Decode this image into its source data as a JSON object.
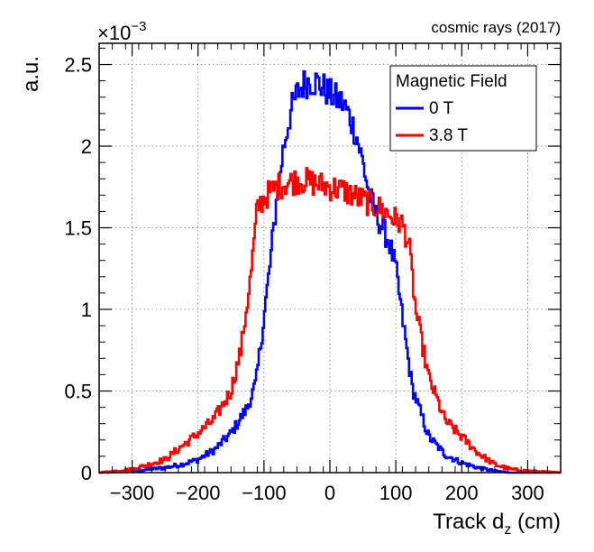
{
  "chart_data": {
    "type": "line",
    "title": "cosmic rays (2017)",
    "xlabel": "Track d",
    "xlabel_sub": "z",
    "xlabel_unit": " (cm)",
    "ylabel": "a.u.",
    "y_multiplier": "×10",
    "y_multiplier_exp": "−3",
    "xlim": [
      -350,
      350
    ],
    "ylim": [
      0,
      0.00263
    ],
    "x_ticks": [
      -300,
      -200,
      -100,
      0,
      100,
      200,
      300
    ],
    "x_tick_labels": [
      "−300",
      "−200",
      "−100",
      "0",
      "100",
      "200",
      "300"
    ],
    "y_ticks": [
      0,
      0.0005,
      0.001,
      0.0015,
      0.002,
      0.0025
    ],
    "y_tick_labels": [
      "0",
      "0.5",
      "1",
      "1.5",
      "2",
      "2.5"
    ],
    "grid": true,
    "legend_title": "Magnetic Field",
    "legend_position": "top-right",
    "series": [
      {
        "name": "0 T",
        "color": "#0000ff",
        "x": [
          -350,
          -300,
          -250,
          -225,
          -200,
          -175,
          -150,
          -125,
          -112,
          -100,
          -90,
          -80,
          -70,
          -60,
          -50,
          -40,
          -30,
          -20,
          -10,
          0,
          10,
          20,
          30,
          40,
          50,
          60,
          70,
          80,
          90,
          100,
          110,
          125,
          150,
          175,
          200,
          225,
          250,
          275,
          300,
          350
        ],
        "values": [
          0,
          1e-05,
          3e-05,
          5e-05,
          8e-05,
          0.00014,
          0.00024,
          0.0004,
          0.00055,
          0.00095,
          0.0013,
          0.0017,
          0.002,
          0.0022,
          0.00232,
          0.00238,
          0.0024,
          0.00239,
          0.00236,
          0.00232,
          0.00229,
          0.00226,
          0.00218,
          0.00207,
          0.0019,
          0.0017,
          0.00158,
          0.0015,
          0.00141,
          0.00125,
          0.00095,
          0.00052,
          0.00022,
          0.00011,
          6e-05,
          3e-05,
          1e-05,
          0,
          0,
          0
        ]
      },
      {
        "name": "3.8 T",
        "color": "#ff0000",
        "x": [
          -350,
          -300,
          -250,
          -225,
          -200,
          -175,
          -150,
          -135,
          -120,
          -110,
          -100,
          -90,
          -80,
          -70,
          -60,
          -50,
          -40,
          -30,
          -20,
          -10,
          0,
          10,
          20,
          30,
          40,
          50,
          60,
          70,
          80,
          90,
          100,
          110,
          120,
          130,
          150,
          175,
          200,
          225,
          250,
          275,
          300,
          350
        ],
        "values": [
          0,
          2e-05,
          8e-05,
          0.00016,
          0.00024,
          0.00033,
          0.0005,
          0.00075,
          0.0012,
          0.00162,
          0.00168,
          0.00172,
          0.00175,
          0.00177,
          0.00178,
          0.00179,
          0.00179,
          0.00178,
          0.00177,
          0.00176,
          0.00175,
          0.00174,
          0.00173,
          0.00171,
          0.00169,
          0.00167,
          0.00165,
          0.00163,
          0.00161,
          0.00158,
          0.00155,
          0.00152,
          0.0014,
          0.001,
          0.00058,
          0.00032,
          0.00022,
          0.00012,
          5e-05,
          2e-05,
          1e-05,
          0
        ]
      }
    ]
  }
}
